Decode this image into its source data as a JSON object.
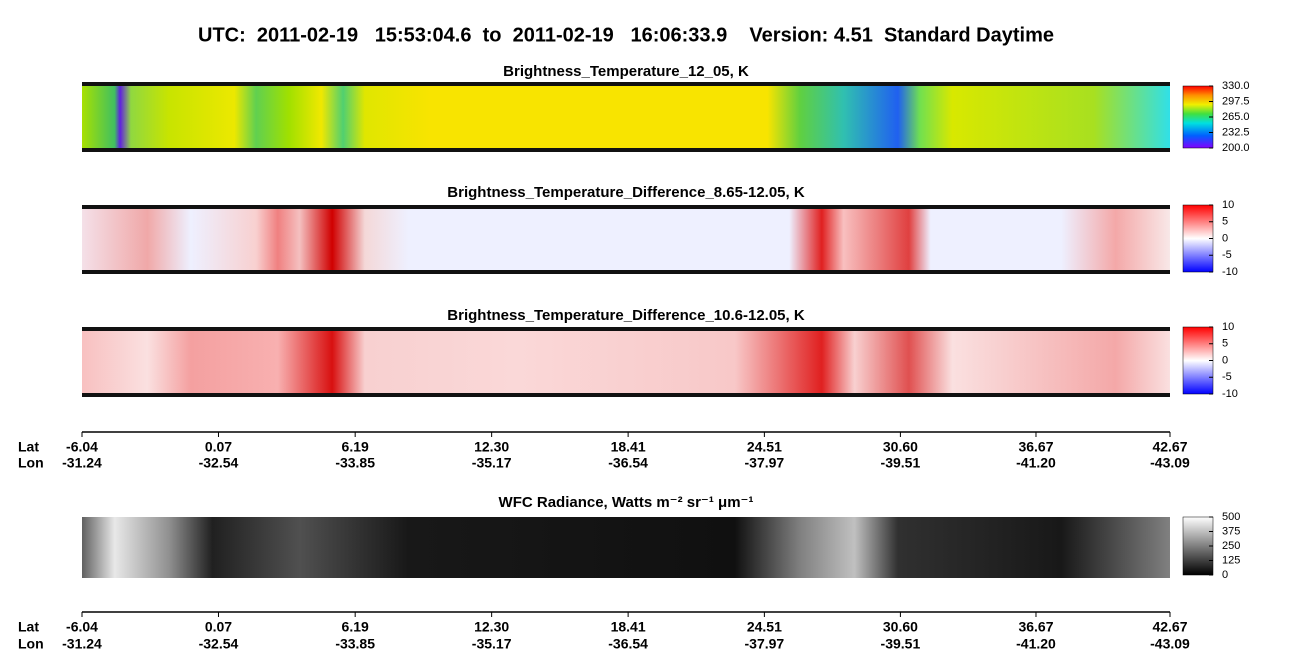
{
  "title": "UTC:  2011-02-19   15:53:04.6  to  2011-02-19   16:06:33.9    Version: 4.51  Standard Daytime",
  "chart_data": [
    {
      "type": "heatmap",
      "title": "Brightness_Temperature_12_05, K",
      "clim": [
        200,
        330
      ],
      "cticks": [
        {
          "value": 200,
          "label": "200.0"
        },
        232.5,
        {
          "value": 265,
          "label": "265.0"
        },
        297.5,
        {
          "value": 330,
          "label": "330.0"
        }
      ]
    },
    {
      "type": "heatmap",
      "title": "Brightness_Temperature_Difference_8.65-12.05, K",
      "clim": [
        -10,
        10
      ],
      "cticks": [
        -10,
        -5,
        0,
        5,
        10
      ]
    },
    {
      "type": "heatmap",
      "title": "Brightness_Temperature_Difference_10.6-12.05, K",
      "clim": [
        -10,
        10
      ],
      "cticks": [
        -10,
        -5,
        0,
        5,
        10
      ]
    },
    {
      "type": "axis",
      "row_labels": [
        "Lat",
        "Lon"
      ],
      "xlim": [
        -6.04,
        42.67
      ],
      "lat": [
        -6.04,
        0.07,
        6.19,
        {
          "value": 12.3,
          "label": "12.30"
        },
        18.41,
        24.51,
        {
          "value": 30.6,
          "label": "30.60"
        },
        36.67,
        42.67
      ],
      "lon": [
        -31.24,
        -32.54,
        -33.85,
        -35.17,
        -36.54,
        -37.97,
        -39.51,
        {
          "value": -41.2,
          "label": "-41.20"
        },
        -43.09
      ]
    },
    {
      "type": "heatmap",
      "title": "WFC Radiance, Watts m⁻² sr⁻¹ μm⁻¹",
      "clim": [
        0,
        500
      ],
      "cticks": [
        0,
        125,
        250,
        375,
        500
      ]
    },
    {
      "type": "axis",
      "row_labels": [
        "Lat",
        "Lon"
      ],
      "xlim": [
        -6.04,
        42.67
      ],
      "lat": [
        -6.04,
        0.07,
        6.19,
        {
          "value": 12.3,
          "label": "12.30"
        },
        18.41,
        24.51,
        {
          "value": 30.6,
          "label": "30.60"
        },
        36.67,
        42.67
      ],
      "lon": [
        -31.24,
        -32.54,
        -33.85,
        -35.17,
        -36.54,
        -37.97,
        -39.51,
        {
          "value": -41.2,
          "label": "-41.20"
        },
        -43.09
      ]
    }
  ]
}
